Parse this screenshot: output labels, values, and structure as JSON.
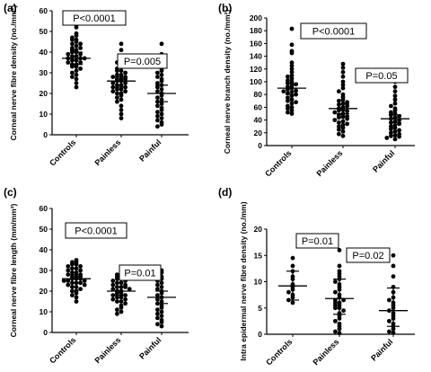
{
  "chart_data": [
    {
      "panel": "(a)",
      "type": "scatter",
      "ylabel": "Corneal nerve fibre density (no./mm²)",
      "ylim": [
        0,
        60
      ],
      "yticks": [
        0,
        10,
        20,
        30,
        40,
        50,
        60
      ],
      "categories": [
        "Controls",
        "Painless",
        "Painful"
      ],
      "summary": [
        {
          "mean": 37,
          "sd_low": 34,
          "sd_high": 40
        },
        {
          "mean": 26,
          "sd_low": 23,
          "sd_high": 28
        },
        {
          "mean": 20,
          "sd_low": 16,
          "sd_high": 24
        }
      ],
      "series": [
        {
          "values": [
            53,
            52,
            49,
            48,
            47,
            46,
            46,
            45,
            44,
            44,
            43,
            42,
            42,
            41,
            41,
            40,
            40,
            39,
            39,
            38,
            38,
            37,
            37,
            37,
            36,
            36,
            35,
            35,
            34,
            34,
            33,
            33,
            32,
            31,
            30,
            29,
            28,
            27,
            25,
            23
          ]
        },
        {
          "values": [
            44,
            41,
            38,
            36,
            35,
            34,
            33,
            32,
            31,
            31,
            30,
            29,
            29,
            28,
            28,
            27,
            27,
            27,
            26,
            26,
            25,
            25,
            24,
            24,
            23,
            23,
            22,
            22,
            21,
            21,
            20,
            20,
            19,
            18,
            17,
            16,
            14,
            12,
            10,
            8
          ]
        },
        {
          "values": [
            44,
            39,
            34,
            32,
            31,
            30,
            29,
            28,
            27,
            26,
            25,
            24,
            23,
            22,
            21,
            20,
            19,
            18,
            17,
            16,
            15,
            14,
            13,
            12,
            11,
            10,
            9,
            8,
            7,
            6,
            5,
            4
          ]
        }
      ],
      "annotations": [
        {
          "text": "P<0.0001"
        },
        {
          "text": "P=0.005"
        }
      ]
    },
    {
      "panel": "(b)",
      "type": "scatter",
      "ylabel": "Corneal nerve branch density (no./mm²)",
      "ylim": [
        0,
        200
      ],
      "yticks": [
        0,
        20,
        40,
        60,
        80,
        100,
        120,
        140,
        160,
        180,
        200
      ],
      "categories": [
        "Controls",
        "Painless",
        "Painful"
      ],
      "summary": [
        {
          "mean": 90,
          "sd_low": 80,
          "sd_high": 97
        },
        {
          "mean": 58,
          "sd_low": 50,
          "sd_high": 65
        },
        {
          "mean": 42,
          "sd_low": 36,
          "sd_high": 48
        }
      ],
      "series": [
        {
          "values": [
            183,
            158,
            148,
            145,
            130,
            125,
            120,
            115,
            110,
            108,
            105,
            102,
            100,
            98,
            96,
            94,
            92,
            90,
            88,
            86,
            85,
            84,
            82,
            80,
            78,
            75,
            72,
            70,
            68,
            66,
            62,
            60,
            58,
            55,
            52,
            50
          ]
        },
        {
          "values": [
            128,
            122,
            115,
            108,
            100,
            95,
            90,
            85,
            80,
            76,
            72,
            70,
            68,
            66,
            64,
            62,
            60,
            58,
            56,
            55,
            54,
            52,
            50,
            48,
            46,
            45,
            44,
            42,
            40,
            38,
            36,
            34,
            32,
            30,
            28,
            25,
            22,
            18,
            15
          ]
        },
        {
          "values": [
            110,
            100,
            92,
            85,
            78,
            72,
            66,
            62,
            58,
            55,
            52,
            50,
            48,
            46,
            44,
            42,
            40,
            38,
            36,
            34,
            32,
            30,
            28,
            26,
            24,
            22,
            20,
            18,
            16,
            15,
            14,
            12,
            10
          ]
        }
      ],
      "annotations": [
        {
          "text": "P<0.0001"
        },
        {
          "text": "P=0.05"
        }
      ]
    },
    {
      "panel": "(c)",
      "type": "scatter",
      "ylabel": "Corneal nerve fibre length (mm/mm²)",
      "ylim": [
        0,
        60
      ],
      "yticks": [
        0,
        10,
        20,
        30,
        40,
        50,
        60
      ],
      "categories": [
        "Controls",
        "Painless",
        "Painful"
      ],
      "summary": [
        {
          "mean": 26,
          "sd_low": 24,
          "sd_high": 28
        },
        {
          "mean": 20,
          "sd_low": 18,
          "sd_high": 22
        },
        {
          "mean": 17,
          "sd_low": 14,
          "sd_high": 20
        }
      ],
      "series": [
        {
          "values": [
            35,
            34,
            34,
            33,
            33,
            32,
            32,
            31,
            31,
            30,
            30,
            29,
            29,
            28,
            28,
            27,
            27,
            27,
            26,
            26,
            26,
            25,
            25,
            25,
            24,
            24,
            24,
            23,
            23,
            22,
            22,
            21,
            20,
            20,
            19,
            18,
            17,
            15
          ]
        },
        {
          "values": [
            30,
            29,
            28,
            27,
            27,
            26,
            26,
            25,
            25,
            24,
            24,
            23,
            23,
            22,
            22,
            22,
            21,
            21,
            20,
            20,
            19,
            19,
            18,
            18,
            17,
            17,
            16,
            16,
            15,
            15,
            14,
            13,
            12,
            11,
            10,
            9
          ]
        },
        {
          "values": [
            30,
            29,
            28,
            27,
            26,
            25,
            24,
            23,
            22,
            21,
            20,
            19,
            18,
            17,
            16,
            15,
            14,
            13,
            12,
            11,
            10,
            9,
            8,
            7,
            6,
            5,
            4,
            3
          ]
        }
      ],
      "annotations": [
        {
          "text": "P<0.0001"
        },
        {
          "text": "P=0.01"
        }
      ]
    },
    {
      "panel": "(d)",
      "type": "scatter",
      "ylabel": "Intra epidermal nerve fibre density (no./mm)",
      "ylim": [
        0,
        20
      ],
      "yticks": [
        0,
        5,
        10,
        15,
        20
      ],
      "categories": [
        "Controls",
        "Painless",
        "Painful"
      ],
      "summary": [
        {
          "mean": 9.2,
          "sd_low": 6.5,
          "sd_high": 12.0
        },
        {
          "mean": 6.8,
          "sd_low": 3.8,
          "sd_high": 10.5
        },
        {
          "mean": 4.5,
          "sd_low": 1.5,
          "sd_high": 8.8
        }
      ],
      "series": [
        {
          "values": [
            14.5,
            13,
            12,
            11,
            10.5,
            9.5,
            9,
            8.5,
            8,
            7.5,
            7,
            6.5,
            6
          ]
        },
        {
          "values": [
            16,
            13,
            12,
            11.5,
            11,
            10.5,
            10,
            9.5,
            9,
            8.5,
            8,
            7.5,
            7,
            6.5,
            6.5,
            6,
            6,
            5.5,
            5.5,
            5,
            5,
            4.5,
            4,
            3.5,
            3,
            2.5,
            2,
            1.5,
            1,
            0.5,
            0.2
          ]
        },
        {
          "values": [
            15,
            13,
            11,
            9,
            8,
            7,
            6.5,
            6,
            5.5,
            5,
            4.5,
            4,
            3.5,
            3,
            2.5,
            2,
            1.5,
            1,
            0.5,
            0.3
          ]
        }
      ],
      "annotations": [
        {
          "text": "P=0.01"
        },
        {
          "text": "P=0.02"
        }
      ]
    }
  ]
}
